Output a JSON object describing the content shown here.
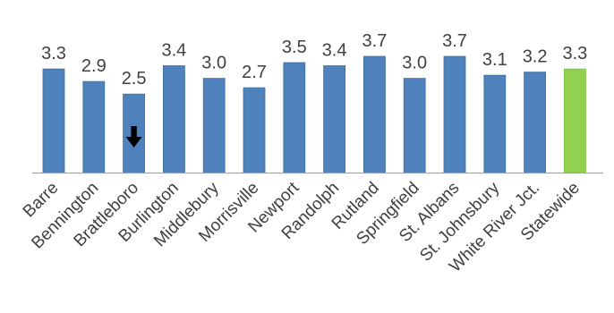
{
  "chart_data": {
    "type": "bar",
    "categories": [
      "Barre",
      "Bennington",
      "Brattleboro",
      "Burlington",
      "Middlebury",
      "Morrisville",
      "Newport",
      "Randolph",
      "Rutland",
      "Springfield",
      "St. Albans",
      "St. Johnsbury",
      "White River Jct.",
      "Statewide"
    ],
    "values": [
      3.3,
      2.9,
      2.5,
      3.4,
      3.0,
      2.7,
      3.5,
      3.4,
      3.7,
      3.0,
      3.7,
      3.1,
      3.2,
      3.3
    ],
    "value_labels": [
      "3.3",
      "2.9",
      "2.5",
      "3.4",
      "3.0",
      "2.7",
      "3.5",
      "3.4",
      "3.7",
      "3.0",
      "3.7",
      "3.1",
      "3.2",
      "3.3"
    ],
    "title": "",
    "xlabel": "",
    "ylabel": "",
    "ylim": [
      0,
      4
    ],
    "grid": false,
    "legend": "none",
    "bar_colors": {
      "default": "#4f81bd",
      "highlight": "#92d050",
      "highlight_category": "Statewide"
    },
    "axis_color": "#a6a6a6",
    "annotations": [
      {
        "type": "down-arrow-icon",
        "category": "Brattleboro",
        "color": "#000000"
      }
    ]
  }
}
